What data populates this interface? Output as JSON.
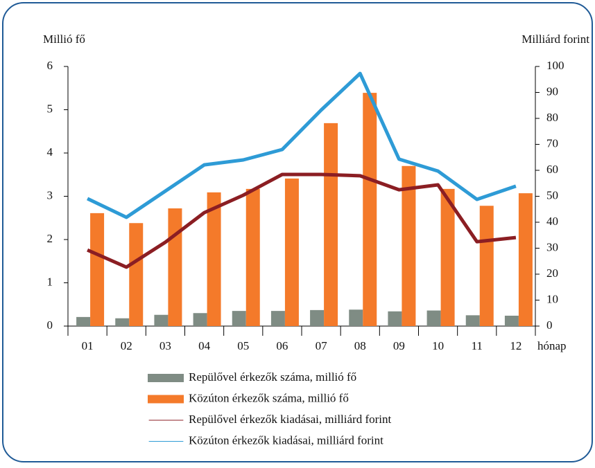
{
  "chart_data": {
    "type": "bar",
    "ylabel": "Millió fő",
    "y2label": "Milliárd forint",
    "xlabel": "hónap",
    "categories": [
      "01",
      "02",
      "03",
      "04",
      "05",
      "06",
      "07",
      "08",
      "09",
      "10",
      "11",
      "12"
    ],
    "series": [
      {
        "name": "Repülővel érkezők száma, millió fő",
        "type": "bar",
        "color": "#7f8c84",
        "values": [
          0.21,
          0.18,
          0.26,
          0.3,
          0.35,
          0.35,
          0.37,
          0.38,
          0.34,
          0.36,
          0.25,
          0.24
        ]
      },
      {
        "name": "Közúton érkezők száma, millió fő",
        "type": "bar",
        "color": "#f47a2a",
        "values": [
          2.61,
          2.38,
          2.72,
          3.09,
          3.17,
          3.41,
          4.69,
          5.39,
          3.7,
          3.17,
          2.78,
          3.07
        ]
      },
      {
        "name": "Repülővel érkezők kiadásai, milliárd forint",
        "type": "line",
        "axis": "y2",
        "color": "#8b1e23",
        "values": [
          29.3,
          22.7,
          32.3,
          43.7,
          50.4,
          58.4,
          58.4,
          57.9,
          52.5,
          54.4,
          32.5,
          34.1
        ]
      },
      {
        "name": "Közúton érkezők kiadásai, milliárd forint",
        "type": "line",
        "axis": "y2",
        "color": "#2e9bd6",
        "values": [
          49.1,
          41.9,
          52,
          62.1,
          64,
          68,
          83.2,
          97.3,
          64.3,
          59.7,
          48.8,
          53.9
        ]
      }
    ],
    "ylim": [
      0,
      6
    ],
    "yticks": [
      0,
      1,
      2,
      3,
      4,
      5,
      6
    ],
    "y2lim": [
      0,
      100
    ],
    "y2ticks": [
      0,
      10,
      20,
      30,
      40,
      50,
      60,
      70,
      80,
      90,
      100
    ]
  }
}
